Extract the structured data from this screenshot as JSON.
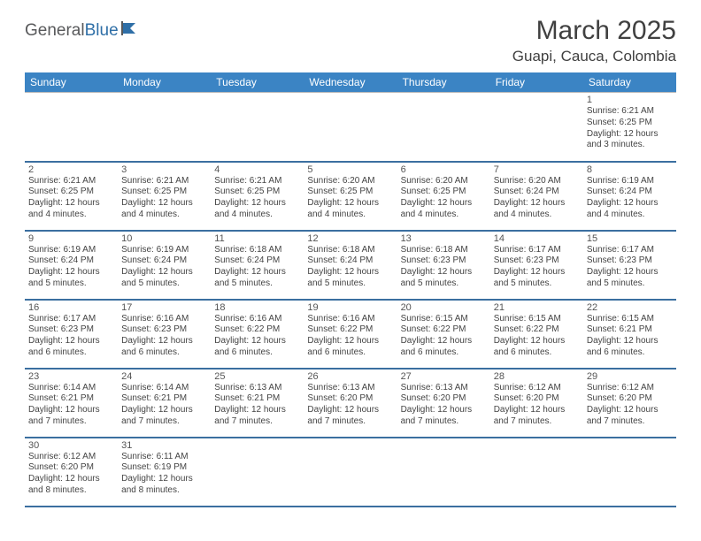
{
  "logo": {
    "text1": "General",
    "text2": "Blue"
  },
  "title": "March 2025",
  "location": "Guapi, Cauca, Colombia",
  "colors": {
    "header_bg": "#3b84c4",
    "header_text": "#ffffff",
    "row_border": "#3b6fa0",
    "cell_border": "#b9b9b9",
    "text": "#444444",
    "title_text": "#404040",
    "logo_gray": "#58595b",
    "logo_blue": "#2f6fa7"
  },
  "day_headers": [
    "Sunday",
    "Monday",
    "Tuesday",
    "Wednesday",
    "Thursday",
    "Friday",
    "Saturday"
  ],
  "weeks": [
    [
      null,
      null,
      null,
      null,
      null,
      null,
      {
        "n": "1",
        "sr": "6:21 AM",
        "ss": "6:25 PM",
        "dl": "12 hours and 3 minutes."
      }
    ],
    [
      {
        "n": "2",
        "sr": "6:21 AM",
        "ss": "6:25 PM",
        "dl": "12 hours and 4 minutes."
      },
      {
        "n": "3",
        "sr": "6:21 AM",
        "ss": "6:25 PM",
        "dl": "12 hours and 4 minutes."
      },
      {
        "n": "4",
        "sr": "6:21 AM",
        "ss": "6:25 PM",
        "dl": "12 hours and 4 minutes."
      },
      {
        "n": "5",
        "sr": "6:20 AM",
        "ss": "6:25 PM",
        "dl": "12 hours and 4 minutes."
      },
      {
        "n": "6",
        "sr": "6:20 AM",
        "ss": "6:25 PM",
        "dl": "12 hours and 4 minutes."
      },
      {
        "n": "7",
        "sr": "6:20 AM",
        "ss": "6:24 PM",
        "dl": "12 hours and 4 minutes."
      },
      {
        "n": "8",
        "sr": "6:19 AM",
        "ss": "6:24 PM",
        "dl": "12 hours and 4 minutes."
      }
    ],
    [
      {
        "n": "9",
        "sr": "6:19 AM",
        "ss": "6:24 PM",
        "dl": "12 hours and 5 minutes."
      },
      {
        "n": "10",
        "sr": "6:19 AM",
        "ss": "6:24 PM",
        "dl": "12 hours and 5 minutes."
      },
      {
        "n": "11",
        "sr": "6:18 AM",
        "ss": "6:24 PM",
        "dl": "12 hours and 5 minutes."
      },
      {
        "n": "12",
        "sr": "6:18 AM",
        "ss": "6:24 PM",
        "dl": "12 hours and 5 minutes."
      },
      {
        "n": "13",
        "sr": "6:18 AM",
        "ss": "6:23 PM",
        "dl": "12 hours and 5 minutes."
      },
      {
        "n": "14",
        "sr": "6:17 AM",
        "ss": "6:23 PM",
        "dl": "12 hours and 5 minutes."
      },
      {
        "n": "15",
        "sr": "6:17 AM",
        "ss": "6:23 PM",
        "dl": "12 hours and 5 minutes."
      }
    ],
    [
      {
        "n": "16",
        "sr": "6:17 AM",
        "ss": "6:23 PM",
        "dl": "12 hours and 6 minutes."
      },
      {
        "n": "17",
        "sr": "6:16 AM",
        "ss": "6:23 PM",
        "dl": "12 hours and 6 minutes."
      },
      {
        "n": "18",
        "sr": "6:16 AM",
        "ss": "6:22 PM",
        "dl": "12 hours and 6 minutes."
      },
      {
        "n": "19",
        "sr": "6:16 AM",
        "ss": "6:22 PM",
        "dl": "12 hours and 6 minutes."
      },
      {
        "n": "20",
        "sr": "6:15 AM",
        "ss": "6:22 PM",
        "dl": "12 hours and 6 minutes."
      },
      {
        "n": "21",
        "sr": "6:15 AM",
        "ss": "6:22 PM",
        "dl": "12 hours and 6 minutes."
      },
      {
        "n": "22",
        "sr": "6:15 AM",
        "ss": "6:21 PM",
        "dl": "12 hours and 6 minutes."
      }
    ],
    [
      {
        "n": "23",
        "sr": "6:14 AM",
        "ss": "6:21 PM",
        "dl": "12 hours and 7 minutes."
      },
      {
        "n": "24",
        "sr": "6:14 AM",
        "ss": "6:21 PM",
        "dl": "12 hours and 7 minutes."
      },
      {
        "n": "25",
        "sr": "6:13 AM",
        "ss": "6:21 PM",
        "dl": "12 hours and 7 minutes."
      },
      {
        "n": "26",
        "sr": "6:13 AM",
        "ss": "6:20 PM",
        "dl": "12 hours and 7 minutes."
      },
      {
        "n": "27",
        "sr": "6:13 AM",
        "ss": "6:20 PM",
        "dl": "12 hours and 7 minutes."
      },
      {
        "n": "28",
        "sr": "6:12 AM",
        "ss": "6:20 PM",
        "dl": "12 hours and 7 minutes."
      },
      {
        "n": "29",
        "sr": "6:12 AM",
        "ss": "6:20 PM",
        "dl": "12 hours and 7 minutes."
      }
    ],
    [
      {
        "n": "30",
        "sr": "6:12 AM",
        "ss": "6:20 PM",
        "dl": "12 hours and 8 minutes."
      },
      {
        "n": "31",
        "sr": "6:11 AM",
        "ss": "6:19 PM",
        "dl": "12 hours and 8 minutes."
      },
      null,
      null,
      null,
      null,
      null
    ]
  ],
  "labels": {
    "sunrise": "Sunrise:",
    "sunset": "Sunset:",
    "daylight": "Daylight:"
  }
}
